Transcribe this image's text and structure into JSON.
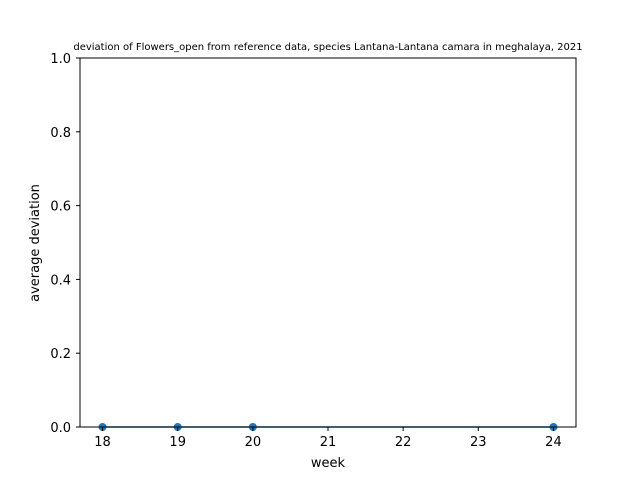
{
  "chart_data": {
    "type": "line",
    "title": "deviation of Flowers_open from reference data, species Lantana-Lantana camara in meghalaya, 2021",
    "xlabel": "week",
    "ylabel": "average deviation",
    "xlim": [
      17.7,
      24.3
    ],
    "ylim": [
      0,
      1.0
    ],
    "x_ticks": [
      18,
      19,
      20,
      21,
      22,
      23,
      24
    ],
    "y_ticks": [
      0.0,
      0.2,
      0.4,
      0.6,
      0.8,
      1.0
    ],
    "grid": false,
    "series": [
      {
        "x": [
          18,
          19,
          20,
          24
        ],
        "y": [
          0,
          0,
          0,
          0
        ],
        "color": "#1f77b4",
        "marker": "circle"
      }
    ]
  }
}
